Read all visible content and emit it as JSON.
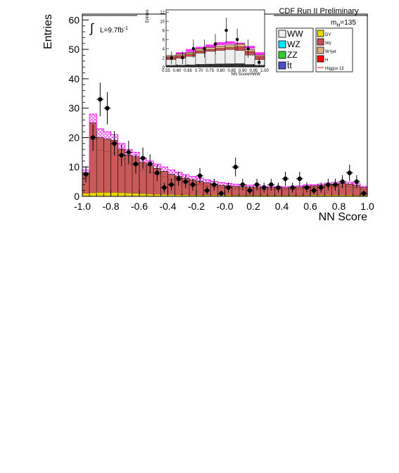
{
  "chart_data": [
    {
      "type": "histogram-stacked",
      "header": "CDF Run II Preliminary",
      "mass_label": "m_H=135",
      "mass_main": "m",
      "mass_sub": "H",
      "mass_value": "=135",
      "lumi_label": "L=9.7fb",
      "lumi_sup": "-1",
      "integral_symbol": "∫",
      "xlabel": "NN Score",
      "ylabel": "Entries",
      "xlim": [
        -1.0,
        1.0
      ],
      "ylim": [
        0,
        62
      ],
      "xticks": [
        "-1.0",
        "-0.8",
        "-0.6",
        "-0.4",
        "-0.2",
        "-0.0",
        "0.2",
        "0.4",
        "0.6",
        "0.8",
        "1.0"
      ],
      "yticks": [
        "0",
        "10",
        "20",
        "30",
        "40",
        "50",
        "60"
      ],
      "bins": 40,
      "bin_edges": [
        -1.0,
        1.0
      ],
      "stack_total": [
        8,
        25,
        20,
        19.5,
        19,
        16,
        14,
        13.5,
        11.5,
        10.5,
        9.5,
        8.5,
        7.5,
        6.8,
        6.2,
        5.6,
        5.1,
        4.6,
        4.2,
        3.8,
        3.6,
        3.4,
        3.3,
        3.2,
        3.1,
        3.0,
        3.0,
        2.9,
        2.9,
        3.0,
        3.2,
        3.5,
        3.6,
        3.8,
        4.0,
        4.2,
        4.4,
        4.2,
        3.8,
        3.0
      ],
      "signal_envelope": [
        9,
        28,
        23,
        22,
        21,
        18,
        16,
        15,
        13,
        12,
        11,
        10,
        9,
        8.2,
        7.4,
        6.8,
        6.2,
        5.6,
        5.1,
        4.7,
        4.4,
        4.1,
        3.9,
        3.8,
        3.6,
        3.5,
        3.4,
        3.4,
        3.3,
        3.4,
        3.6,
        3.9,
        4.0,
        4.2,
        4.5,
        4.8,
        5.0,
        4.8,
        4.3,
        3.4
      ],
      "dy_band": [
        1.0,
        1.2,
        1.3,
        1.3,
        1.3,
        1.2,
        1.1,
        1.0,
        0.9,
        0.8,
        0.7,
        0.6,
        0.6,
        0.5,
        0.5,
        0.4,
        0.4,
        0.4,
        0.4,
        0.4,
        0.4,
        0.3,
        0.3,
        0.3,
        0.3,
        0.3,
        0.3,
        0.3,
        0.3,
        0.3,
        0.3,
        0.3,
        0.4,
        0.4,
        0.4,
        0.4,
        0.4,
        0.4,
        0.3,
        0.3
      ],
      "data_points": [
        {
          "x": -0.975,
          "y": 7.5,
          "err": 2.7
        },
        {
          "x": -0.925,
          "y": 20,
          "err": 4.5
        },
        {
          "x": -0.875,
          "y": 33,
          "err": 5.7
        },
        {
          "x": -0.825,
          "y": 30,
          "err": 5.5
        },
        {
          "x": -0.775,
          "y": 18,
          "err": 4.2
        },
        {
          "x": -0.725,
          "y": 14,
          "err": 3.7
        },
        {
          "x": -0.675,
          "y": 15,
          "err": 3.9
        },
        {
          "x": -0.625,
          "y": 11,
          "err": 3.3
        },
        {
          "x": -0.575,
          "y": 13,
          "err": 3.6
        },
        {
          "x": -0.525,
          "y": 11,
          "err": 3.3
        },
        {
          "x": -0.475,
          "y": 8,
          "err": 2.8
        },
        {
          "x": -0.425,
          "y": 3,
          "err": 1.7
        },
        {
          "x": -0.375,
          "y": 4,
          "err": 2.0
        },
        {
          "x": -0.325,
          "y": 6,
          "err": 2.4
        },
        {
          "x": -0.275,
          "y": 5,
          "err": 2.2
        },
        {
          "x": -0.225,
          "y": 4,
          "err": 2.0
        },
        {
          "x": -0.175,
          "y": 7,
          "err": 2.6
        },
        {
          "x": -0.125,
          "y": 2,
          "err": 1.4
        },
        {
          "x": -0.075,
          "y": 4,
          "err": 2.0
        },
        {
          "x": -0.025,
          "y": 1,
          "err": 1.0
        },
        {
          "x": 0.025,
          "y": 3,
          "err": 1.7
        },
        {
          "x": 0.075,
          "y": 10,
          "err": 3.2
        },
        {
          "x": 0.125,
          "y": 4,
          "err": 2.0
        },
        {
          "x": 0.175,
          "y": 2,
          "err": 1.4
        },
        {
          "x": 0.225,
          "y": 4,
          "err": 2.0
        },
        {
          "x": 0.275,
          "y": 3,
          "err": 1.7
        },
        {
          "x": 0.325,
          "y": 4,
          "err": 2.0
        },
        {
          "x": 0.375,
          "y": 3,
          "err": 1.7
        },
        {
          "x": 0.425,
          "y": 6,
          "err": 2.4
        },
        {
          "x": 0.475,
          "y": 3,
          "err": 1.7
        },
        {
          "x": 0.525,
          "y": 6,
          "err": 2.4
        },
        {
          "x": 0.575,
          "y": 3,
          "err": 1.7
        },
        {
          "x": 0.625,
          "y": 2,
          "err": 1.4
        },
        {
          "x": 0.675,
          "y": 3,
          "err": 1.7
        },
        {
          "x": 0.725,
          "y": 4,
          "err": 2.0
        },
        {
          "x": 0.775,
          "y": 4,
          "err": 2.0
        },
        {
          "x": 0.825,
          "y": 5,
          "err": 2.2
        },
        {
          "x": 0.875,
          "y": 8,
          "err": 2.8
        },
        {
          "x": 0.925,
          "y": 5,
          "err": 2.2
        },
        {
          "x": 0.975,
          "y": 1,
          "err": 1.0
        }
      ],
      "legend": [
        {
          "name": "WW",
          "color": "#f0f0f0"
        },
        {
          "name": "WZ",
          "color": "#00e5ff"
        },
        {
          "name": "ZZ",
          "color": "#33cc33"
        },
        {
          "name": "t̄t",
          "color": "#4d4dcc"
        },
        {
          "name": "DY",
          "color": "#e6d800"
        },
        {
          "name": "Wγ",
          "color": "#c85050"
        },
        {
          "name": "W+jet",
          "color": "#e0b080"
        },
        {
          "name": "H",
          "color": "#ff0000"
        },
        {
          "name": "Higgsx 15",
          "color": "#e53030",
          "style": "line"
        }
      ],
      "colors": {
        "main_fill": "#c85a5a",
        "hatch": "#ff33ff",
        "signal_line": "#ff00ff",
        "data": "#000000"
      }
    },
    {
      "type": "histogram-stacked-inset",
      "xlabel": "NN ScoreHWW",
      "ylabel": "Entries",
      "xlim": [
        0.55,
        1.0
      ],
      "ylim": [
        0,
        12.5
      ],
      "xticks": [
        "0.55",
        "0.60",
        "0.65",
        "0.70",
        "0.75",
        "0.80",
        "0.85",
        "0.90",
        "0.95",
        "1.00"
      ],
      "yticks": [
        "0",
        "2",
        "4",
        "6",
        "8",
        "10",
        "12"
      ],
      "stack_total": [
        2.5,
        2.8,
        3.2,
        4.0,
        4.3,
        4.6,
        4.8,
        5.0,
        3.8,
        2.6
      ],
      "ww_part": [
        1.6,
        1.9,
        2.3,
        3.0,
        3.4,
        3.6,
        3.8,
        3.6,
        2.6,
        1.6
      ],
      "signal_band": [
        0,
        3.2,
        3.9,
        4.4,
        4.9,
        5.4,
        5.6,
        5.3,
        4.6,
        3.2
      ],
      "data_points": [
        {
          "x": 0.575,
          "y": 2.0,
          "err": 1.4
        },
        {
          "x": 0.625,
          "y": 2.0,
          "err": 1.4
        },
        {
          "x": 0.675,
          "y": 4.0,
          "err": 2.0
        },
        {
          "x": 0.725,
          "y": 4.0,
          "err": 2.0
        },
        {
          "x": 0.775,
          "y": 5.0,
          "err": 2.2
        },
        {
          "x": 0.825,
          "y": 8.0,
          "err": 2.8
        },
        {
          "x": 0.875,
          "y": 6.0,
          "err": 2.4
        },
        {
          "x": 0.925,
          "y": 4.0,
          "err": 2.0
        },
        {
          "x": 0.975,
          "y": 1.0,
          "err": 1.0
        }
      ]
    }
  ]
}
